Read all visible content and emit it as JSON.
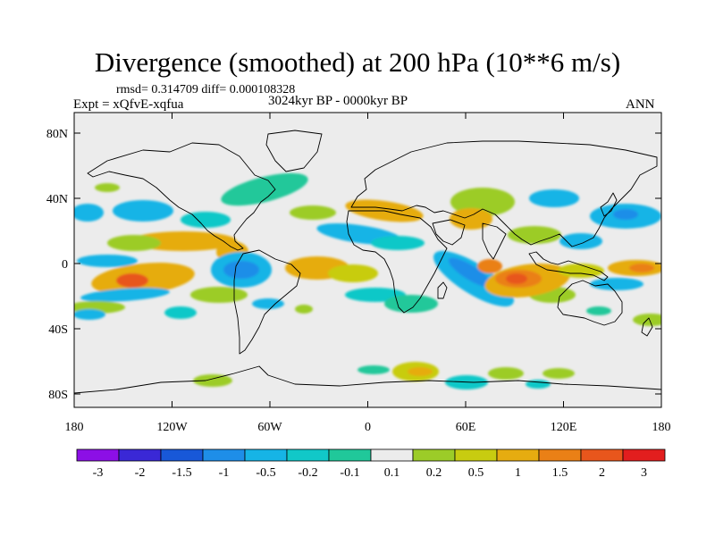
{
  "title": "Divergence (smoothed) at 200 hPa (10**6 m/s)",
  "stats": "rmsd= 0.314709 diff= 0.000108328",
  "experiment": "Expt = xQfvE-xqfua",
  "period": "3024kyr BP - 0000kyr BP",
  "season": "ANN",
  "lat_ticks": [
    "80N",
    "40N",
    "0",
    "40S",
    "80S"
  ],
  "lon_ticks": [
    "180",
    "120W",
    "60W",
    "0",
    "60E",
    "120E",
    "180"
  ],
  "colorbar": {
    "labels": [
      "-3",
      "-2",
      "-1.5",
      "-1",
      "-0.5",
      "-0.2",
      "-0.1",
      "0.1",
      "0.2",
      "0.5",
      "1",
      "1.5",
      "2",
      "3"
    ],
    "colors": [
      "#8c0fe6",
      "#3a28d6",
      "#1858d8",
      "#1e8ee8",
      "#16b4e6",
      "#11c8c8",
      "#20c89a",
      "#ececec",
      "#9ccc28",
      "#c8cc10",
      "#e6ac10",
      "#ea8016",
      "#e8561c",
      "#e21e1e"
    ]
  },
  "colors": {
    "missing": "#ececec",
    "coast": "#000000"
  }
}
